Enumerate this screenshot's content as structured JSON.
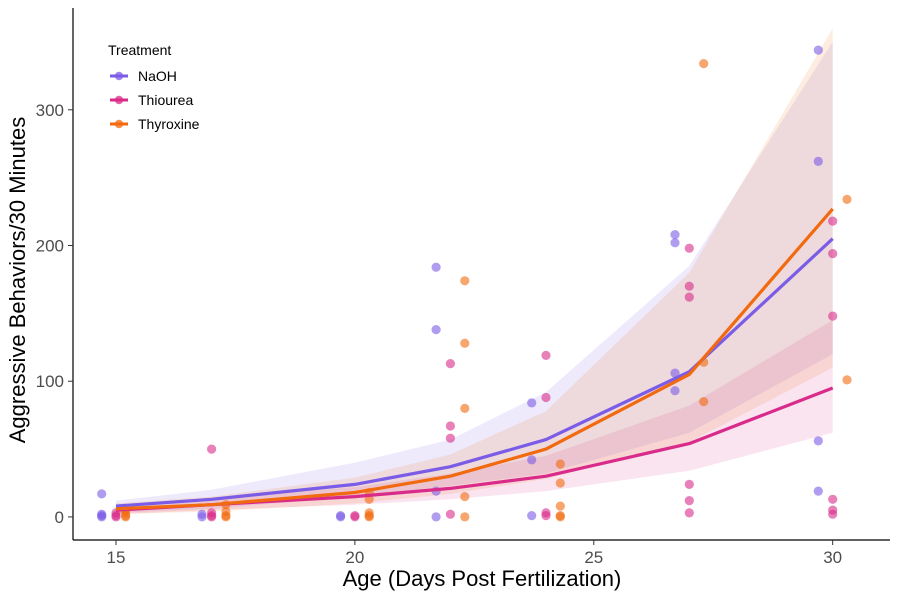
{
  "chart_data": {
    "type": "scatter",
    "xlabel": "Age (Days Post Fertilization)",
    "ylabel": "Aggressive Behaviors/30 Minutes",
    "xlim": [
      14.1,
      31.2
    ],
    "ylim": [
      -17,
      375
    ],
    "xticks": [
      15,
      20,
      25,
      30
    ],
    "yticks": [
      0,
      100,
      200,
      300
    ],
    "grid": false,
    "legend": {
      "title": "Treatment",
      "position": "top-left"
    },
    "series": [
      {
        "name": "NaOH",
        "color": "#7B5CE6",
        "fit_x": [
          15,
          17,
          20,
          22,
          24,
          27,
          30
        ],
        "fit_y": [
          8,
          13,
          24,
          37,
          57,
          107,
          205
        ],
        "band_lower": [
          3,
          6,
          15,
          23,
          32,
          62,
          120
        ],
        "band_upper": [
          12,
          20,
          40,
          57,
          92,
          185,
          350
        ],
        "points": [
          [
            14.7,
            17
          ],
          [
            14.7,
            2
          ],
          [
            14.7,
            1
          ],
          [
            14.7,
            0
          ],
          [
            16.8,
            2
          ],
          [
            16.8,
            0
          ],
          [
            19.7,
            1
          ],
          [
            19.7,
            0
          ],
          [
            21.7,
            184
          ],
          [
            21.7,
            138
          ],
          [
            21.7,
            19
          ],
          [
            21.7,
            0
          ],
          [
            23.7,
            84
          ],
          [
            23.7,
            42
          ],
          [
            23.7,
            1
          ],
          [
            26.7,
            208
          ],
          [
            26.7,
            202
          ],
          [
            26.7,
            106
          ],
          [
            26.7,
            93
          ],
          [
            29.7,
            344
          ],
          [
            29.7,
            262
          ],
          [
            29.7,
            56
          ],
          [
            29.7,
            19
          ]
        ]
      },
      {
        "name": "Thiourea",
        "color": "#D92B8A",
        "fit_x": [
          15,
          17,
          20,
          22,
          24,
          27,
          30
        ],
        "fit_y": [
          5,
          9,
          15,
          21,
          30,
          54,
          95
        ],
        "band_lower": [
          2,
          5,
          9,
          13,
          19,
          34,
          62
        ],
        "band_upper": [
          9,
          14,
          22,
          32,
          45,
          82,
          145
        ],
        "points": [
          [
            15.0,
            3
          ],
          [
            15.0,
            1
          ],
          [
            15.0,
            0
          ],
          [
            17.0,
            50
          ],
          [
            17.0,
            3
          ],
          [
            17.0,
            1
          ],
          [
            17.0,
            0
          ],
          [
            20.0,
            1
          ],
          [
            20.0,
            0
          ],
          [
            22.0,
            113
          ],
          [
            22.0,
            67
          ],
          [
            22.0,
            58
          ],
          [
            22.0,
            2
          ],
          [
            24.0,
            119
          ],
          [
            24.0,
            88
          ],
          [
            24.0,
            3
          ],
          [
            24.0,
            1
          ],
          [
            27.0,
            198
          ],
          [
            27.0,
            170
          ],
          [
            27.0,
            162
          ],
          [
            27.0,
            24
          ],
          [
            27.0,
            12
          ],
          [
            27.0,
            3
          ],
          [
            30.0,
            218
          ],
          [
            30.0,
            194
          ],
          [
            30.0,
            148
          ],
          [
            30.0,
            13
          ],
          [
            30.0,
            5
          ],
          [
            30.0,
            2
          ]
        ]
      },
      {
        "name": "Thyroxine",
        "color": "#F26A0F",
        "fit_x": [
          15,
          17,
          20,
          22,
          24,
          27,
          30
        ],
        "fit_y": [
          6,
          9,
          18,
          30,
          50,
          105,
          227
        ],
        "band_lower": [
          2,
          4,
          10,
          17,
          28,
          55,
          110
        ],
        "band_upper": [
          10,
          15,
          29,
          46,
          78,
          180,
          360
        ],
        "points": [
          [
            15.2,
            5
          ],
          [
            15.2,
            3
          ],
          [
            15.2,
            1
          ],
          [
            15.2,
            0
          ],
          [
            17.3,
            9
          ],
          [
            17.3,
            4
          ],
          [
            17.3,
            1
          ],
          [
            17.3,
            0
          ],
          [
            20.3,
            18
          ],
          [
            20.3,
            13
          ],
          [
            20.3,
            3
          ],
          [
            20.3,
            1
          ],
          [
            20.3,
            0
          ],
          [
            22.3,
            174
          ],
          [
            22.3,
            128
          ],
          [
            22.3,
            80
          ],
          [
            22.3,
            15
          ],
          [
            22.3,
            0
          ],
          [
            24.3,
            39
          ],
          [
            24.3,
            25
          ],
          [
            24.3,
            8
          ],
          [
            24.3,
            1
          ],
          [
            24.3,
            0
          ],
          [
            27.3,
            334
          ],
          [
            27.3,
            114
          ],
          [
            27.3,
            85
          ],
          [
            30.3,
            234
          ],
          [
            30.3,
            101
          ]
        ]
      }
    ]
  }
}
